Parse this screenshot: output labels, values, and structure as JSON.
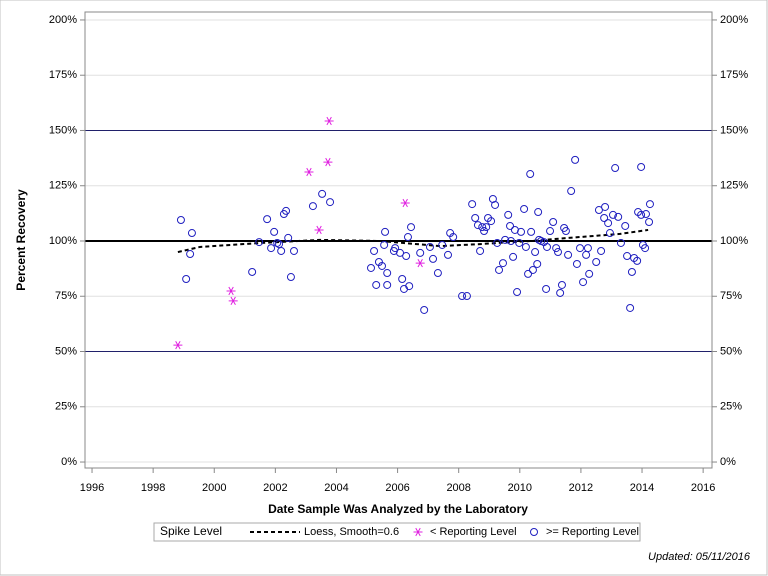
{
  "chart_data": {
    "type": "scatter",
    "x_label": "Date Sample Was Analyzed by the Laboratory",
    "y_label": "Percent Recovery",
    "legend_title": "Spike Level",
    "footnote": "Updated: 05/11/2016",
    "xlim": [
      1995.77,
      2016.29
    ],
    "ylim": [
      -2.7,
      203.6
    ],
    "xticks": [
      1996,
      1998,
      2000,
      2002,
      2004,
      2006,
      2008,
      2010,
      2012,
      2014,
      2016
    ],
    "yticks": [
      {
        "value": 0,
        "label": "0%"
      },
      {
        "value": 25,
        "label": "25%"
      },
      {
        "value": 50,
        "label": "50%"
      },
      {
        "value": 75,
        "label": "75%"
      },
      {
        "value": 100,
        "label": "100%"
      },
      {
        "value": 125,
        "label": "125%"
      },
      {
        "value": 150,
        "label": "150%"
      },
      {
        "value": 175,
        "label": "175%"
      },
      {
        "value": 200,
        "label": "200%"
      }
    ],
    "y2lim": [
      -2.7,
      203.6
    ],
    "y2ticks": [
      {
        "value": 0,
        "label": "0%"
      },
      {
        "value": 25,
        "label": "25%"
      },
      {
        "value": 50,
        "label": "50%"
      },
      {
        "value": 75,
        "label": "75%"
      },
      {
        "value": 100,
        "label": "100%"
      },
      {
        "value": 125,
        "label": "125%"
      },
      {
        "value": 150,
        "label": "150%"
      },
      {
        "value": 175,
        "label": "175%"
      },
      {
        "value": 200,
        "label": "200%"
      }
    ],
    "grid": true,
    "baseline": 100,
    "reference_lines": [
      50,
      150
    ],
    "series": [
      {
        "name": "Loess, Smooth=0.6",
        "color": "#000000",
        "marker": "dashed-line",
        "x": [
          1998.81,
          1999.53,
          2001.5,
          2003.46,
          2005.43,
          2007.39,
          2008.7,
          2010.34,
          2011.97,
          2013.28,
          2014.2
        ],
        "values": [
          95.0,
          97.3,
          99.1,
          100.5,
          100.0,
          97.7,
          98.6,
          100.0,
          101.8,
          103.2,
          105.0
        ]
      },
      {
        "name": "< Reporting Level",
        "color": "#e020e0",
        "marker": "asterisk",
        "x": [
          1998.81,
          2000.55,
          2000.62,
          2003.1,
          2003.43,
          2003.76,
          2003.72,
          2006.25,
          2006.74
        ],
        "values": [
          52.9,
          77.4,
          72.9,
          131.2,
          105.0,
          154.3,
          135.7,
          117.2,
          90.0
        ]
      },
      {
        "name": ">= Reporting Level",
        "color": "#2020c0",
        "marker": "circle",
        "x": [
          1998.91,
          1999.08,
          1999.21,
          1999.27,
          2001.24,
          2001.47,
          2001.73,
          2001.86,
          2001.96,
          2002.06,
          2002.12,
          2002.19,
          2002.28,
          2002.35,
          2002.42,
          2002.51,
          2002.61,
          2003.23,
          2003.53,
          2003.79,
          2005.13,
          2005.23,
          2005.3,
          2005.39,
          2005.49,
          2005.56,
          2005.59,
          2005.66,
          2005.66,
          2005.88,
          2005.92,
          2006.08,
          2006.15,
          2006.21,
          2006.28,
          2006.34,
          2006.38,
          2006.44,
          2006.74,
          2006.87,
          2007.06,
          2007.16,
          2007.32,
          2007.46,
          2007.65,
          2007.72,
          2007.82,
          2008.11,
          2008.27,
          2008.44,
          2008.54,
          2008.63,
          2008.7,
          2008.77,
          2008.9,
          2008.83,
          2008.96,
          2009.06,
          2009.12,
          2009.19,
          2009.26,
          2009.32,
          2009.45,
          2009.52,
          2009.62,
          2009.68,
          2009.71,
          2009.78,
          2009.84,
          2009.91,
          2009.98,
          2010.04,
          2010.14,
          2010.2,
          2010.27,
          2010.34,
          2010.37,
          2010.43,
          2010.5,
          2010.57,
          2010.6,
          2010.63,
          2010.7,
          2010.79,
          2010.86,
          2010.89,
          2010.99,
          2011.09,
          2011.19,
          2011.25,
          2011.32,
          2011.38,
          2011.45,
          2011.51,
          2011.58,
          2011.68,
          2011.81,
          2011.87,
          2011.97,
          2012.07,
          2012.17,
          2012.23,
          2012.27,
          2012.5,
          2012.59,
          2012.66,
          2012.79,
          2012.76,
          2012.89,
          2012.95,
          2013.05,
          2013.12,
          2013.22,
          2013.31,
          2013.45,
          2013.51,
          2013.61,
          2013.67,
          2013.74,
          2013.87,
          2013.84,
          2013.97,
          2013.97,
          2014.03,
          2014.1,
          2014.13,
          2014.23,
          2014.26
        ],
        "values": [
          109.5,
          82.8,
          94.1,
          103.6,
          86.0,
          99.5,
          109.9,
          96.8,
          104.1,
          99.1,
          98.6,
          95.5,
          112.2,
          113.6,
          101.4,
          83.7,
          95.5,
          115.8,
          121.3,
          117.6,
          87.8,
          95.5,
          80.1,
          90.5,
          88.7,
          98.2,
          104.1,
          85.5,
          80.1,
          95.5,
          96.8,
          94.6,
          82.8,
          78.3,
          93.2,
          101.8,
          79.6,
          106.3,
          94.6,
          68.8,
          97.3,
          91.9,
          85.5,
          98.2,
          93.7,
          103.6,
          101.8,
          75.1,
          75.1,
          116.7,
          110.4,
          107.2,
          95.5,
          106.3,
          106.3,
          104.5,
          110.4,
          109.0,
          119.0,
          116.3,
          99.1,
          86.9,
          90.0,
          100.5,
          111.8,
          106.8,
          100.0,
          92.8,
          105.0,
          76.9,
          99.1,
          104.1,
          114.5,
          97.3,
          85.1,
          130.3,
          104.1,
          86.9,
          95.0,
          89.6,
          113.1,
          100.5,
          100.0,
          99.5,
          78.3,
          97.3,
          104.5,
          108.6,
          96.8,
          95.0,
          76.5,
          80.1,
          105.9,
          104.5,
          93.7,
          122.6,
          136.7,
          89.6,
          96.8,
          81.4,
          93.7,
          96.8,
          85.1,
          90.5,
          114.0,
          95.5,
          115.4,
          110.4,
          108.1,
          103.6,
          111.8,
          133.0,
          110.9,
          99.1,
          106.8,
          93.2,
          69.7,
          86.0,
          92.3,
          113.1,
          91.0,
          111.8,
          133.5,
          98.2,
          96.8,
          112.2,
          108.6,
          116.7
        ]
      }
    ]
  }
}
